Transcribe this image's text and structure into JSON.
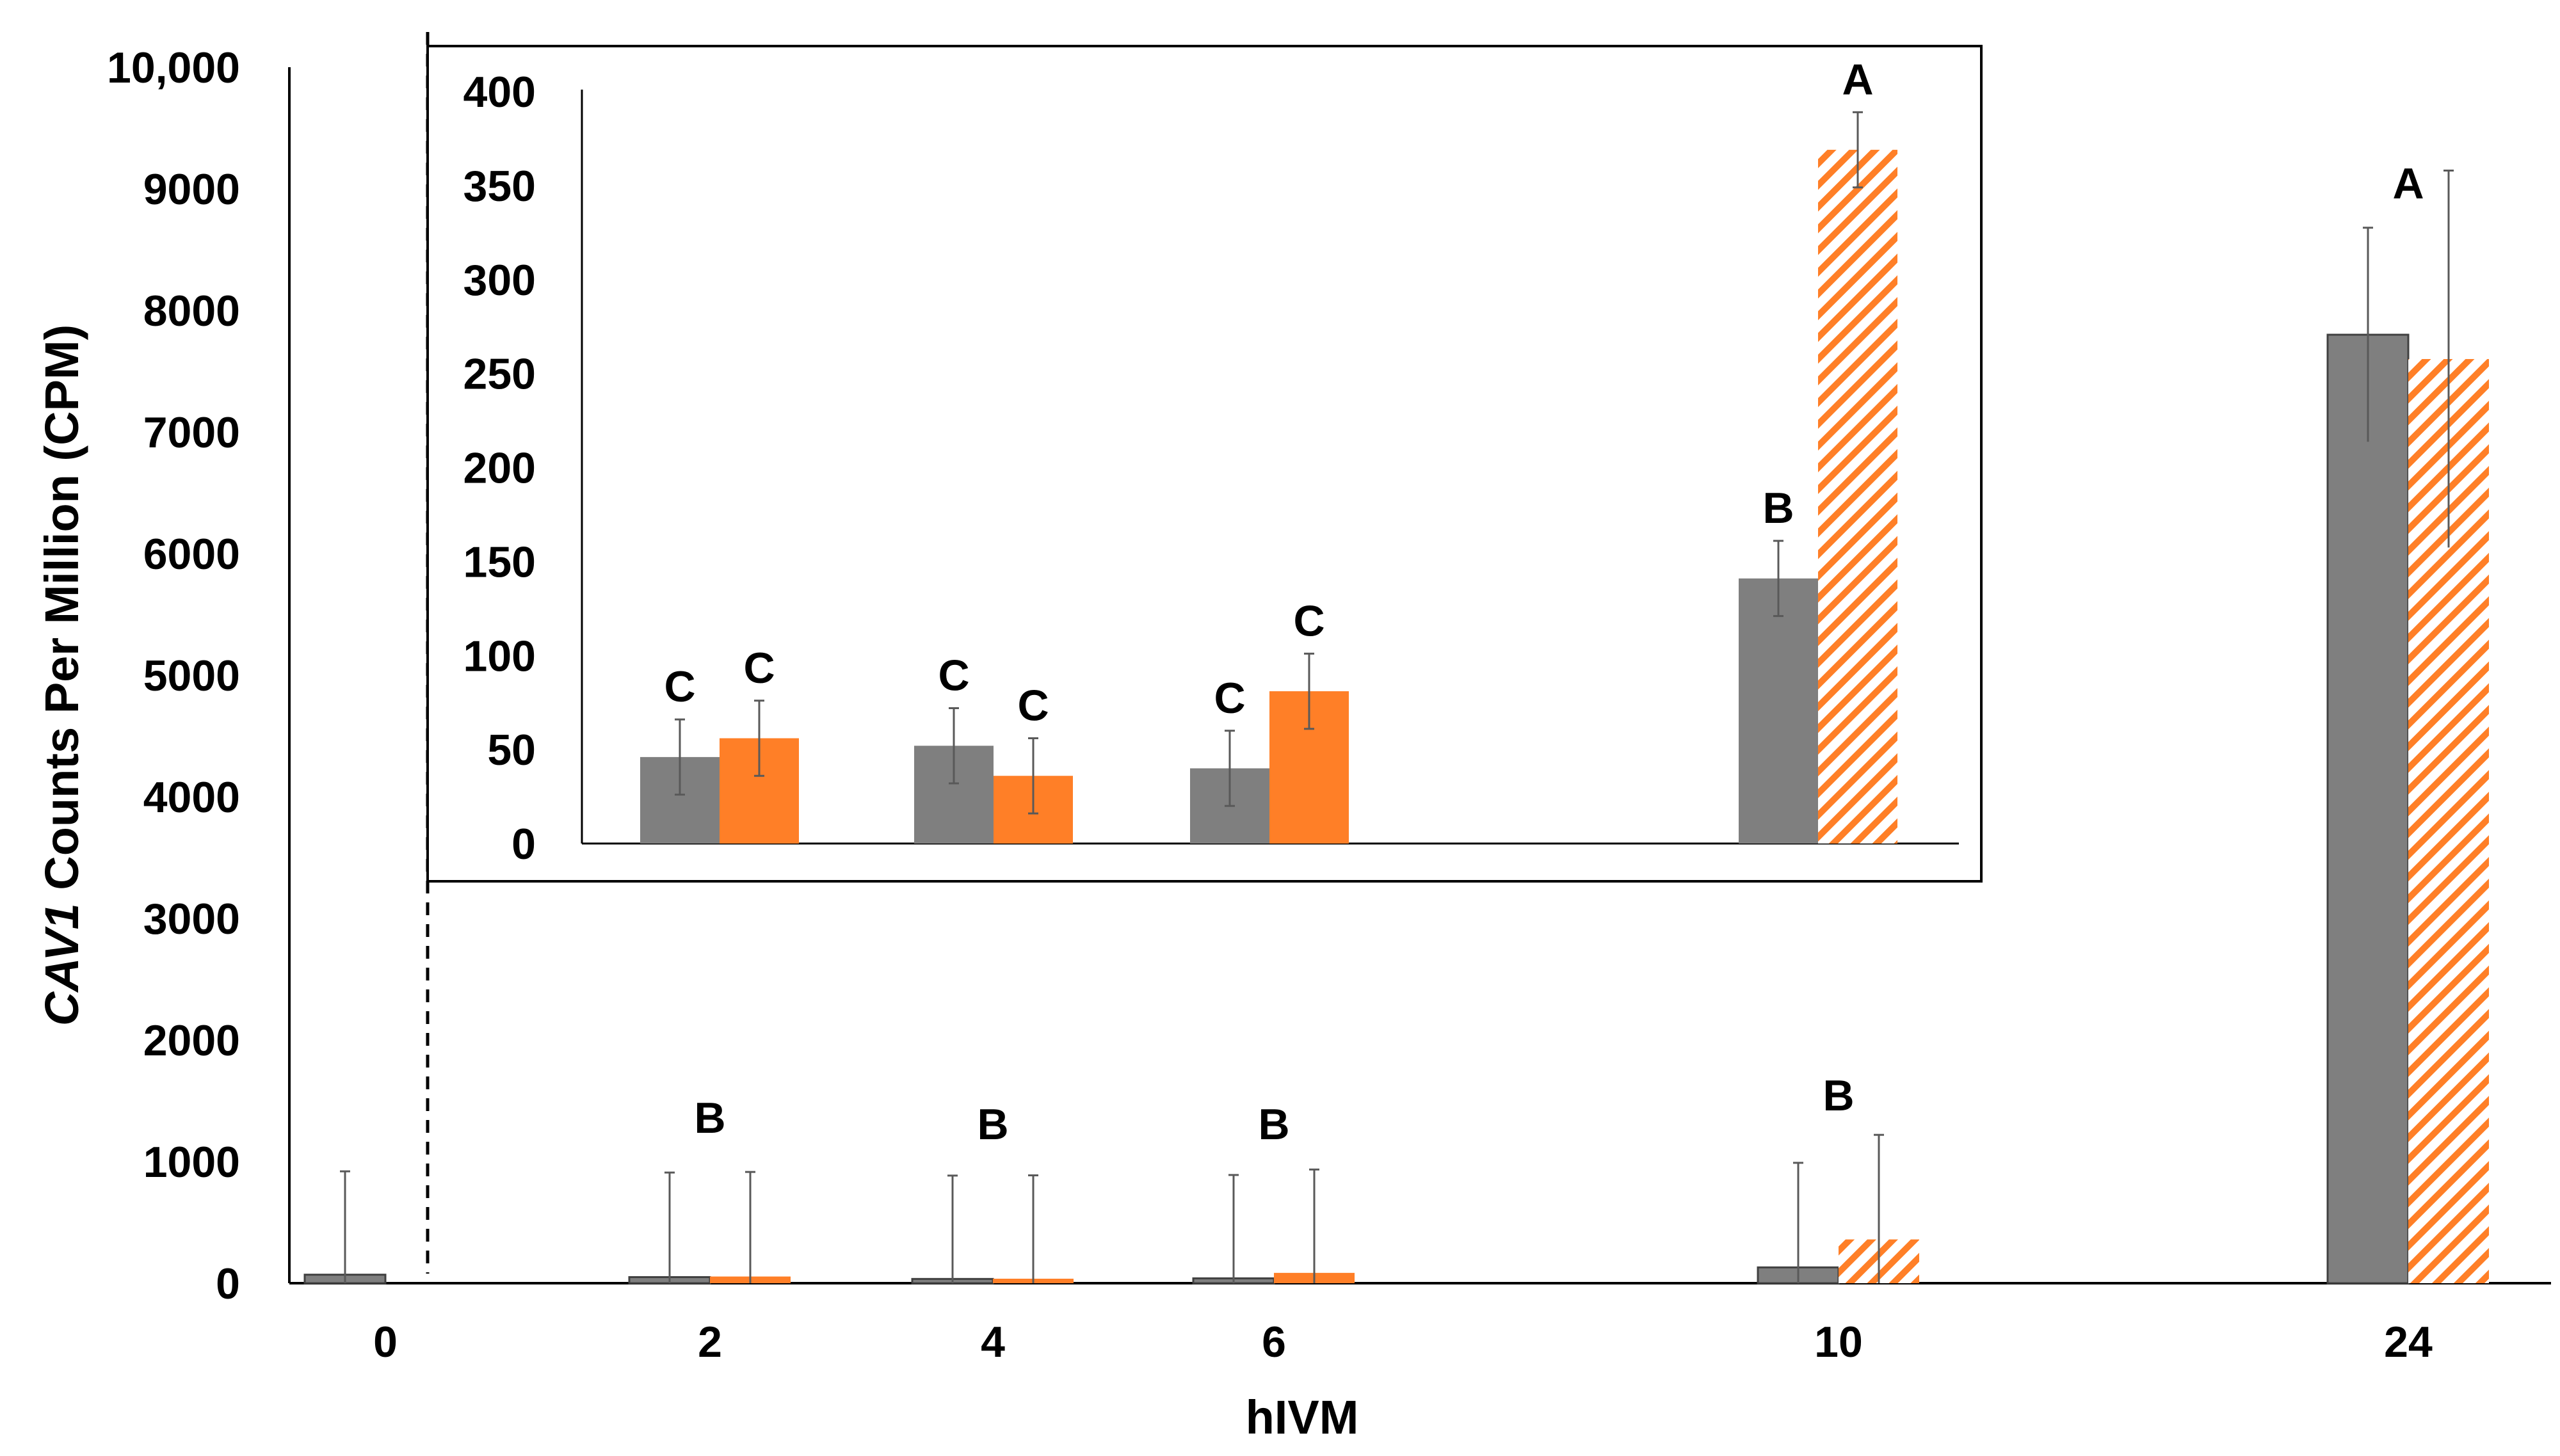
{
  "chart_data": [
    {
      "type": "bar",
      "name": "main",
      "categories": [
        "0",
        "2",
        "4",
        "6",
        "10",
        "24"
      ],
      "series": [
        {
          "name": "gray",
          "color": "#7f7f7f",
          "pattern": "solid",
          "values": [
            70,
            50,
            35,
            40,
            130,
            7800
          ],
          "errors": [
            850,
            860,
            850,
            850,
            860,
            880
          ]
        },
        {
          "name": "orange",
          "color": "#ff7f27",
          "pattern": "hatched",
          "values": [
            null,
            55,
            37,
            85,
            360,
            7600
          ],
          "errors": [
            null,
            860,
            850,
            850,
            860,
            1550
          ]
        }
      ],
      "letters": [
        {
          "category": "2",
          "text": "B"
        },
        {
          "category": "4",
          "text": "B"
        },
        {
          "category": "6",
          "text": "B"
        },
        {
          "category": "10",
          "text": "B"
        },
        {
          "category": "24",
          "text": "A"
        }
      ],
      "ylim": [
        0,
        10000
      ],
      "yticks": [
        {
          "value": 0,
          "label": "0"
        },
        {
          "value": 1000,
          "label": "1000"
        },
        {
          "value": 2000,
          "label": "2000"
        },
        {
          "value": 3000,
          "label": "3000"
        },
        {
          "value": 4000,
          "label": "4000"
        },
        {
          "value": 5000,
          "label": "5000"
        },
        {
          "value": 6000,
          "label": "6000"
        },
        {
          "value": 7000,
          "label": "7000"
        },
        {
          "value": 8000,
          "label": "8000"
        },
        {
          "value": 9000,
          "label": "9000"
        },
        {
          "value": 10000,
          "label": "10,000"
        }
      ],
      "xlabel": "hIVM",
      "ylabel_italic": "CAV1",
      "ylabel_rest": " Counts Per Million (CPM)"
    },
    {
      "type": "bar",
      "name": "inset",
      "categories": [
        "2",
        "4",
        "6",
        "10"
      ],
      "series": [
        {
          "name": "gray",
          "color": "#7f7f7f",
          "pattern": "solid",
          "values": [
            46,
            52,
            40,
            141
          ],
          "errors": [
            20,
            20,
            20,
            20
          ]
        },
        {
          "name": "orange",
          "color": "#ff7f27",
          "pattern": "solid-except-10-hatched",
          "values": [
            56,
            36,
            81,
            369
          ],
          "errors": [
            20,
            20,
            20,
            20
          ]
        }
      ],
      "letters": [
        {
          "category": "2",
          "gray": "C",
          "orange": "C"
        },
        {
          "category": "4",
          "gray": "C",
          "orange": "C"
        },
        {
          "category": "6",
          "gray": "C",
          "orange": "C"
        },
        {
          "category": "10",
          "gray": "B",
          "orange": "A"
        }
      ],
      "ylim": [
        0,
        400
      ],
      "yticks": [
        {
          "value": 0,
          "label": "0"
        },
        {
          "value": 50,
          "label": "50"
        },
        {
          "value": 100,
          "label": "100"
        },
        {
          "value": 150,
          "label": "150"
        },
        {
          "value": 200,
          "label": "200"
        },
        {
          "value": 250,
          "label": "250"
        },
        {
          "value": 300,
          "label": "300"
        },
        {
          "value": 350,
          "label": "350"
        },
        {
          "value": 400,
          "label": "400"
        }
      ]
    }
  ]
}
